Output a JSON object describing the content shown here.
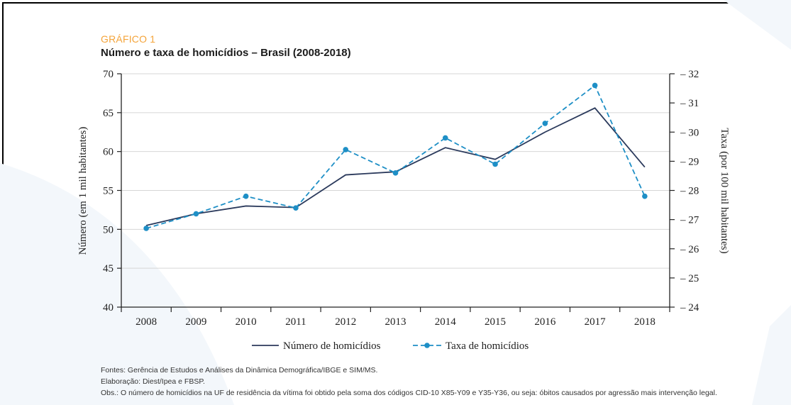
{
  "figure": {
    "label": "GRÁFICO 1",
    "title": "Número e taxa de homicídios – Brasil (2008-2018)"
  },
  "chart_data": {
    "type": "line",
    "categories": [
      "2008",
      "2009",
      "2010",
      "2011",
      "2012",
      "2013",
      "2014",
      "2015",
      "2016",
      "2017",
      "2018"
    ],
    "series": [
      {
        "name": "Número de homicídios",
        "axis": "left",
        "color": "#2b3a5c",
        "style": "solid",
        "values": [
          50.5,
          52.0,
          53.0,
          52.8,
          57.0,
          57.4,
          60.5,
          59.0,
          62.5,
          65.6,
          58.0
        ]
      },
      {
        "name": "Taxa de homicídios",
        "axis": "right",
        "color": "#1e8fc6",
        "style": "dashed-markers",
        "values": [
          26.7,
          27.2,
          27.8,
          27.4,
          29.4,
          28.6,
          29.8,
          28.9,
          30.3,
          31.6,
          27.8
        ]
      }
    ],
    "ylabel": "Número (em 1 mil habitantes)",
    "ylim": [
      40,
      70
    ],
    "yticks": [
      40,
      45,
      50,
      55,
      60,
      65,
      70
    ],
    "y2label": "Taxa (por 100 mil habitantes)",
    "y2lim": [
      24,
      32
    ],
    "y2ticks": [
      24,
      25,
      26,
      27,
      28,
      29,
      30,
      31,
      32
    ],
    "grid": true,
    "legend": "bottom-center"
  },
  "notes": {
    "sources": "Fontes: Gerência de Estudos e Análises da Dinâmica Demográfica/IBGE e SIM/MS.",
    "elaboration": "Elaboração: Diest/Ipea e FBSP.",
    "obs": "Obs.: O número de homicídios na UF de residência da vítima foi obtido pela soma dos códigos CID-10 X85-Y09 e Y35-Y36, ou seja: óbitos causados por agressão mais intervenção legal."
  }
}
